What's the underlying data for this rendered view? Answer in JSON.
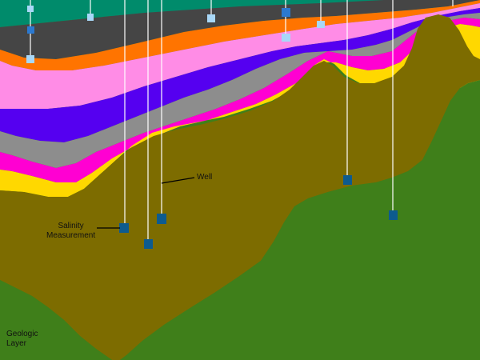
{
  "colors": {
    "background": "#3f7f1a",
    "layers": [
      "#7d6c00",
      "#ffd800",
      "#ff00d2",
      "#8d8d8d",
      "#5500f0",
      "#ff8ce6",
      "#ff7400",
      "#454545",
      "#008b6b",
      "#00997c"
    ],
    "well_line": "#ffffff",
    "marker_dark": "#0d5b8f",
    "marker_medium": "#2b79d0",
    "marker_light": "#a8d8f8"
  },
  "labels": {
    "well": "Well",
    "salinity_line1": "Salinity",
    "salinity_line2": "Measurement",
    "geologic_line1": "Geologic",
    "geologic_line2": "Layer"
  },
  "layer_order": [
    "olive",
    "yellow",
    "magenta",
    "gray",
    "violet",
    "pink",
    "orange",
    "charcoal",
    "teal",
    "sea-green"
  ]
}
